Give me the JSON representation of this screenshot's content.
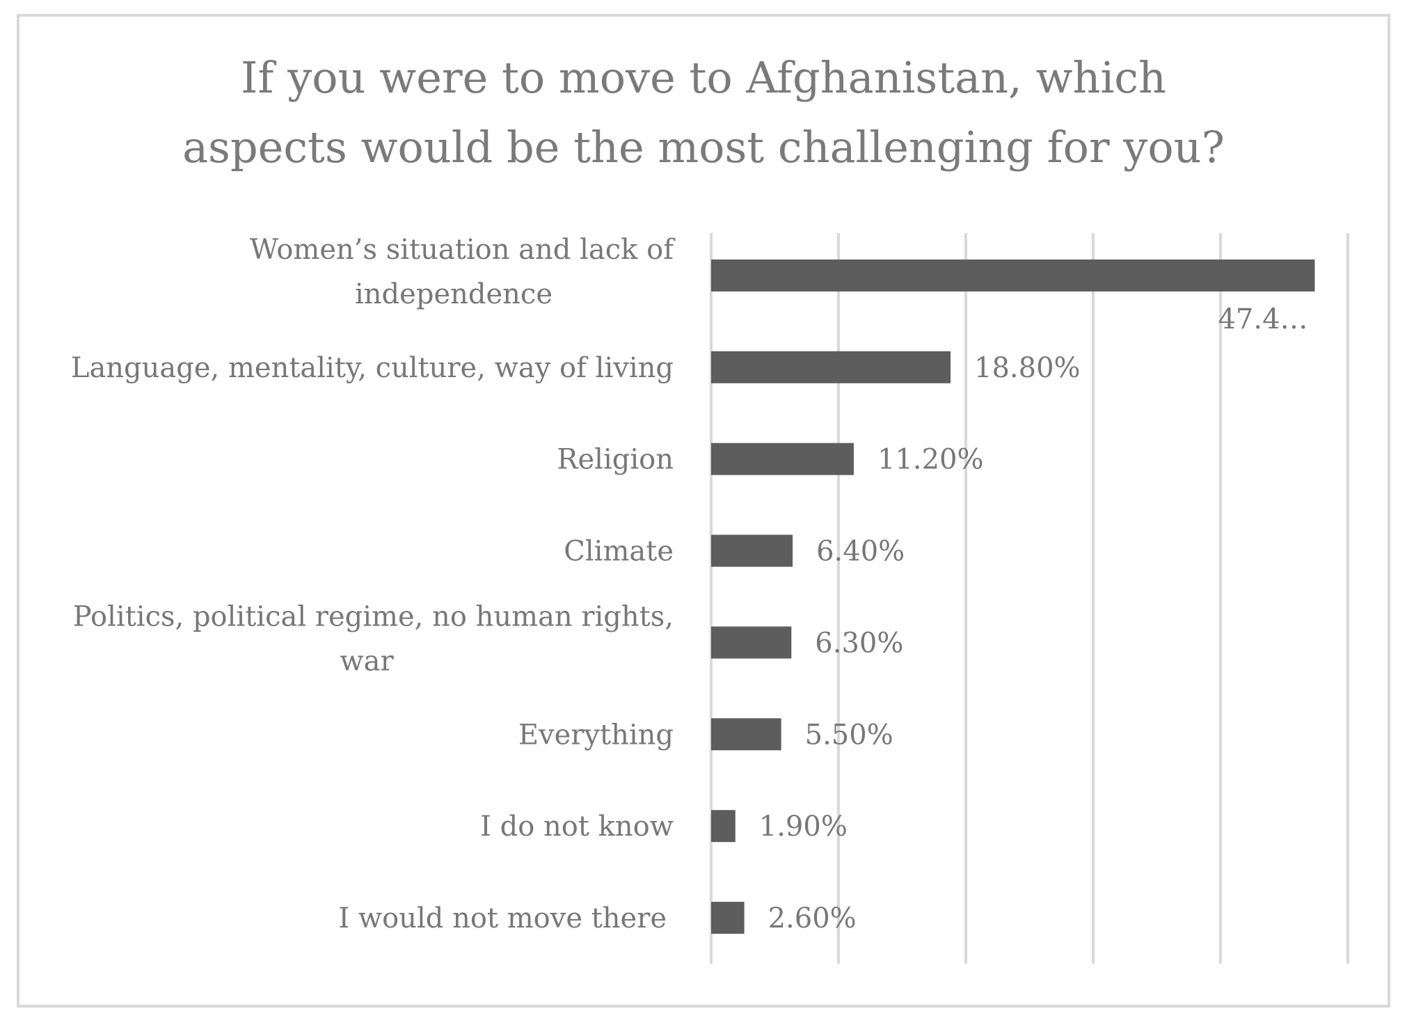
{
  "chart_data": {
    "type": "bar",
    "orientation": "horizontal",
    "title": "If you were to move to Afghanistan, which\naspects would be the most challenging for you?",
    "categories": [
      [
        "Women’s situation and lack of",
        "independence"
      ],
      [
        "Language, mentality, culture, way of living"
      ],
      [
        "Religion"
      ],
      [
        "Climate"
      ],
      [
        "Politics, political regime, no human rights,",
        "war"
      ],
      [
        "Everything"
      ],
      [
        "I do not know"
      ],
      [
        "I would not move there"
      ]
    ],
    "values": [
      47.4,
      18.8,
      11.2,
      6.4,
      6.3,
      5.5,
      1.9,
      2.6
    ],
    "data_labels": [
      "47.4…",
      "18.80%",
      "11.20%",
      "6.40%",
      "6.30%",
      "5.50%",
      "1.90%",
      "2.60%"
    ],
    "xlim": [
      0,
      50
    ],
    "grid": true,
    "bar_color": "#5d5d5d",
    "grid_color": "#d9d9d9",
    "text_color": "#777777"
  }
}
